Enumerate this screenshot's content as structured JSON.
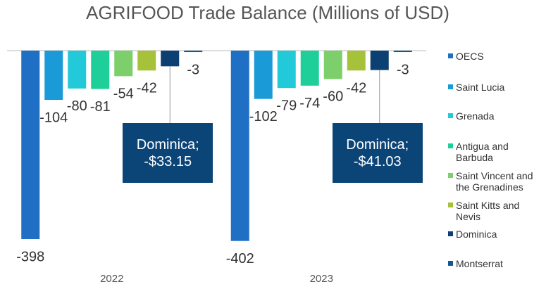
{
  "chart_data": {
    "type": "bar",
    "title": "AGRIFOOD Trade Balance (Millions of USD)",
    "categories": [
      "2022",
      "2023"
    ],
    "ylim": [
      -450,
      0
    ],
    "series": [
      {
        "name": "OECS",
        "color": "#1f6fc5",
        "values": [
          -398,
          -402
        ]
      },
      {
        "name": "Saint Lucia",
        "color": "#1a9bd7",
        "values": [
          -104,
          -102
        ]
      },
      {
        "name": "Grenada",
        "color": "#22c9d8",
        "values": [
          -80,
          -79
        ]
      },
      {
        "name": "Antigua and Barbuda",
        "color": "#1fcf9a",
        "values": [
          -81,
          -74
        ]
      },
      {
        "name": "Saint Vincent and the Grenadines",
        "color": "#7ccf6a",
        "values": [
          -54,
          -60
        ]
      },
      {
        "name": "Saint Kitts and Nevis",
        "color": "#a6c23a",
        "values": [
          -42,
          -42
        ]
      },
      {
        "name": "Dominica",
        "color": "#0c3f72",
        "values": [
          -33.15,
          -41.03
        ],
        "value_labels": [
          "Dominica; -$33.15",
          "Dominica; -$41.03"
        ]
      },
      {
        "name": "Montserrat",
        "color": "#16578f",
        "values": [
          -3,
          -3
        ]
      }
    ],
    "legend": "right"
  }
}
